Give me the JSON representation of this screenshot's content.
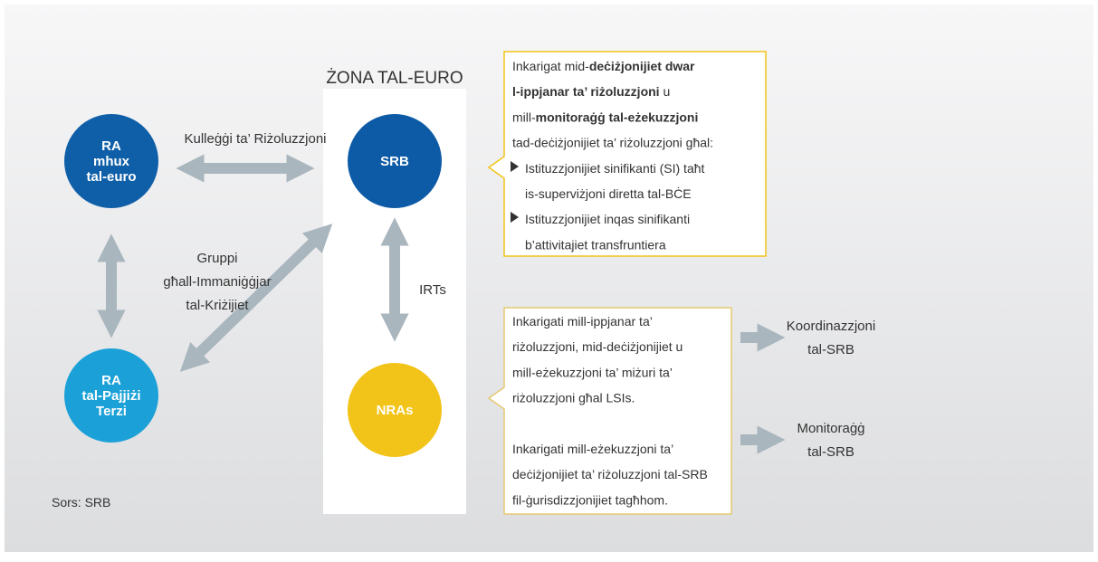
{
  "zone_label": "ŻONA TAL-EURO",
  "nodes": [
    {
      "lines": [
        "RA",
        "mhux",
        "tal-euro"
      ],
      "color": "#0f5fa8"
    },
    {
      "lines": [
        "RA",
        "tal-Pajjiżi",
        "Terzi"
      ],
      "color": "#1ba1d8"
    },
    {
      "lines": [
        "SRB"
      ],
      "color": "#0d5aa6"
    },
    {
      "lines": [
        "NRAs"
      ],
      "color": "#f2c318"
    }
  ],
  "links": [
    {
      "lines": [
        "Kulleġġi ta’ Riżoluzzjoni"
      ]
    },
    {
      "lines": [
        "Gruppi",
        "għall-Immaniġġjar",
        "tal-Kriżijiet"
      ]
    },
    {
      "lines": [
        "IRTs"
      ]
    }
  ],
  "callout_top": {
    "intro": [
      [
        {
          "text": "Inkarigat mid-",
          "bold": false
        },
        {
          "text": "deċiżjonijiet dwar",
          "bold": true
        }
      ],
      [
        {
          "text": "l-ippjanar ta’ riżoluzzjoni",
          "bold": true
        },
        {
          "text": " u",
          "bold": false
        }
      ],
      [
        {
          "text": "mill-",
          "bold": false
        },
        {
          "text": "monitoraġġ tal-eżekuzzjoni",
          "bold": true
        }
      ],
      [
        {
          "text": "tad-deċiżjonijiet ta’ riżoluzzjoni għal:",
          "bold": false
        }
      ]
    ],
    "items": [
      [
        "Istituzzjonijiet sinifikanti (SI) taħt",
        "is-superviżjoni diretta tal-BĊE"
      ],
      [
        "Istituzzjonijiet inqas sinifikanti",
        "b’attivitajiet transfruntiera"
      ]
    ]
  },
  "callout_bottom": {
    "paragraphs": [
      [
        "Inkarigati mill-ippjanar ta’",
        "riżoluzzjoni, mid-deċiżjonijiet u",
        "mill-eżekuzzjoni ta’ miżuri ta’",
        "riżoluzzjoni għal LSIs."
      ],
      [
        "Inkarigati mill-eżekuzzjoni ta’",
        "deċiżjonijiet ta’ riżoluzzjoni tal-SRB",
        "fil-ġurisdizzjonijiet tagħhom."
      ]
    ]
  },
  "outcomes": [
    [
      "Koordinazzjoni",
      "tal-SRB"
    ],
    [
      "Monitoraġġ",
      "tal-SRB"
    ]
  ],
  "source": "Sors: SRB"
}
